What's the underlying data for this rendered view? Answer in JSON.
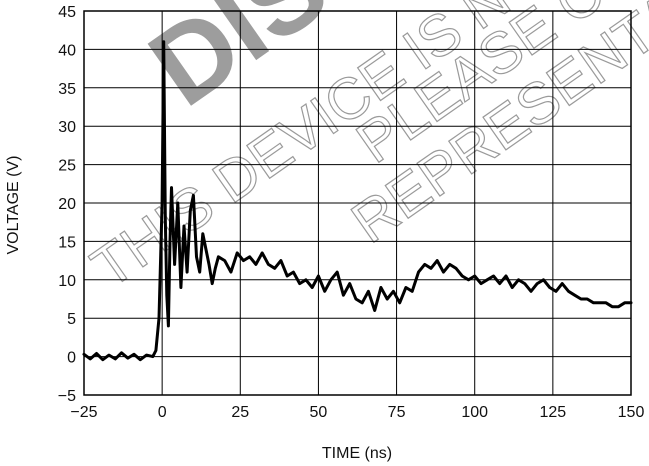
{
  "chart_data": {
    "type": "line",
    "title": "",
    "xlabel": "TIME (ns)",
    "ylabel": "VOLTAGE (V)",
    "xlim": [
      -25,
      150
    ],
    "ylim": [
      -5,
      45
    ],
    "x_ticks": [
      -25,
      0,
      25,
      50,
      75,
      100,
      125,
      150
    ],
    "x_tick_labels": [
      "−25",
      "0",
      "25",
      "50",
      "75",
      "100",
      "125",
      "150"
    ],
    "y_ticks": [
      -5,
      0,
      5,
      10,
      15,
      20,
      25,
      30,
      35,
      40,
      45
    ],
    "y_tick_labels": [
      "−5",
      "0",
      "5",
      "10",
      "15",
      "20",
      "25",
      "30",
      "35",
      "40",
      "45"
    ],
    "grid": true,
    "legend": "none",
    "line_color": "#000000",
    "series": [
      {
        "x": [
          -25,
          -23,
          -21,
          -19,
          -17,
          -15,
          -13,
          -11,
          -9,
          -7,
          -5,
          -3,
          -2,
          -1,
          0,
          0.5,
          1,
          1.5,
          2,
          2.5,
          3,
          4,
          5,
          6,
          7,
          8,
          9,
          10,
          11,
          12,
          13,
          14,
          15,
          16,
          17,
          18,
          20,
          22,
          24,
          26,
          28,
          30,
          32,
          34,
          36,
          38,
          40,
          42,
          44,
          46,
          48,
          50,
          52,
          54,
          56,
          58,
          60,
          62,
          64,
          66,
          68,
          70,
          72,
          74,
          76,
          78,
          80,
          82,
          84,
          86,
          88,
          90,
          92,
          94,
          96,
          98,
          100,
          102,
          104,
          106,
          108,
          110,
          112,
          114,
          116,
          118,
          120,
          122,
          124,
          126,
          128,
          130,
          132,
          134,
          136,
          138,
          140,
          142,
          144,
          146,
          148,
          150
        ],
        "y": [
          0.3,
          -0.3,
          0.4,
          -0.4,
          0.2,
          -0.3,
          0.5,
          -0.2,
          0.3,
          -0.4,
          0.2,
          0.0,
          0.8,
          5.0,
          20.0,
          41.0,
          18.0,
          8.0,
          4.0,
          15.0,
          22.0,
          12.0,
          20.0,
          9.0,
          17.0,
          11.0,
          19.0,
          21.0,
          13.0,
          11.0,
          16.0,
          14.0,
          12.0,
          9.5,
          11.5,
          13.0,
          12.5,
          11.0,
          13.5,
          12.5,
          13.0,
          12.0,
          13.5,
          12.0,
          11.5,
          12.5,
          10.5,
          11.0,
          9.5,
          10.0,
          9.0,
          10.5,
          8.5,
          10.0,
          11.0,
          8.0,
          9.5,
          7.5,
          7.0,
          8.5,
          6.0,
          9.0,
          7.5,
          8.5,
          7.0,
          9.0,
          8.5,
          11.0,
          12.0,
          11.5,
          12.5,
          11.0,
          12.0,
          11.5,
          10.5,
          10.0,
          10.5,
          9.5,
          10.0,
          10.5,
          9.5,
          10.5,
          9.0,
          10.0,
          9.5,
          8.5,
          9.5,
          10.0,
          9.0,
          8.5,
          9.5,
          8.5,
          8.0,
          7.5,
          7.5,
          7.0,
          7.0,
          7.0,
          6.5,
          6.5,
          7.0,
          7.0
        ]
      }
    ]
  },
  "watermark": {
    "big": "DIS",
    "lines": [
      "THIS DEVICE IS NOT",
      "PLEASE CO",
      "REPRESENTATI"
    ]
  }
}
